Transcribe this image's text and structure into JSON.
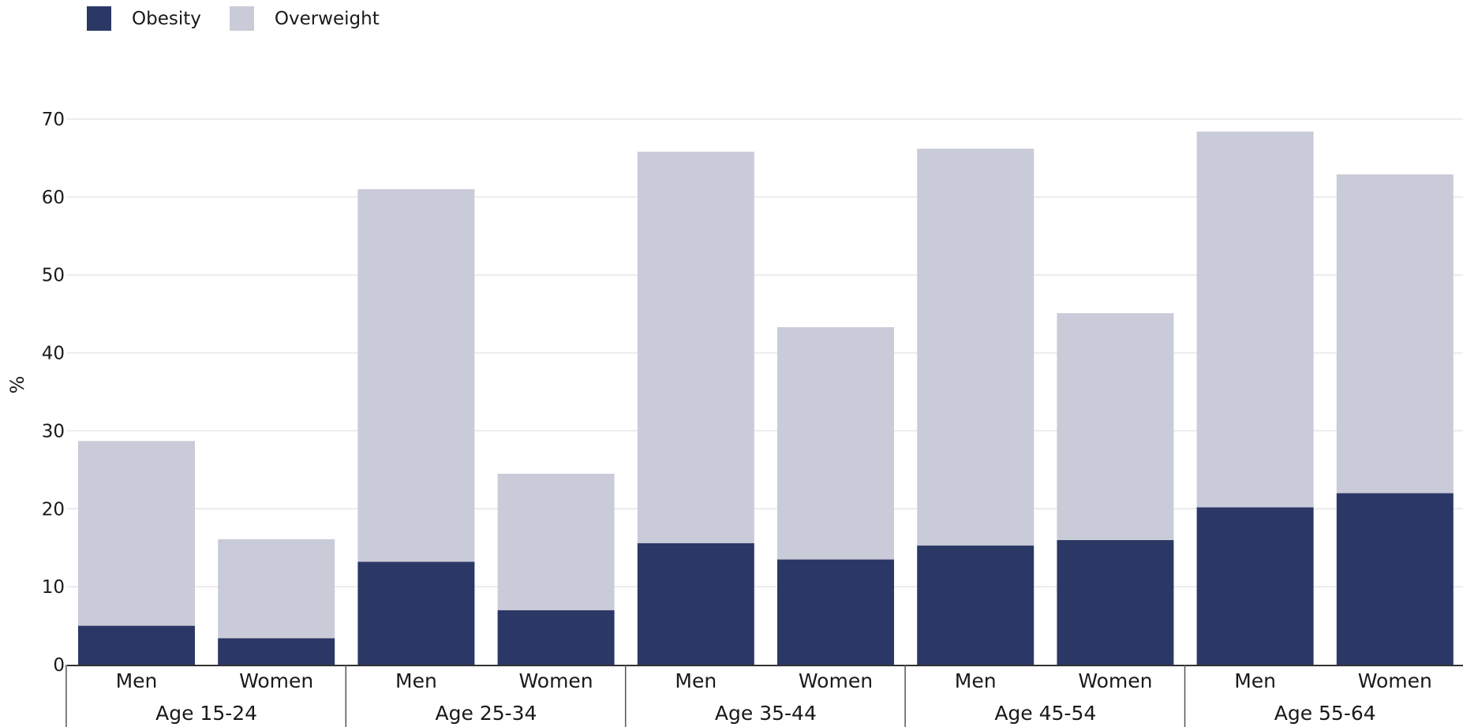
{
  "chart_data": {
    "type": "bar",
    "stacked": true,
    "ylabel": "%",
    "ylim": [
      0,
      70
    ],
    "yticks": [
      0,
      10,
      20,
      30,
      40,
      50,
      60,
      70
    ],
    "grid": true,
    "legend_position": "top-left",
    "groups": [
      "Age 15-24",
      "Age 25-34",
      "Age 35-44",
      "Age 45-54",
      "Age 55-64"
    ],
    "subcategories": [
      "Men",
      "Women"
    ],
    "series": [
      {
        "name": "Obesity",
        "color": "#2b3866",
        "values": [
          5.0,
          3.4,
          13.2,
          7.0,
          15.6,
          13.5,
          15.3,
          16.0,
          20.2,
          22.0
        ]
      },
      {
        "name": "Overweight",
        "color": "#cacbd8",
        "values": [
          23.7,
          12.7,
          47.8,
          17.5,
          50.2,
          29.8,
          50.9,
          29.1,
          48.2,
          40.9
        ]
      }
    ]
  }
}
